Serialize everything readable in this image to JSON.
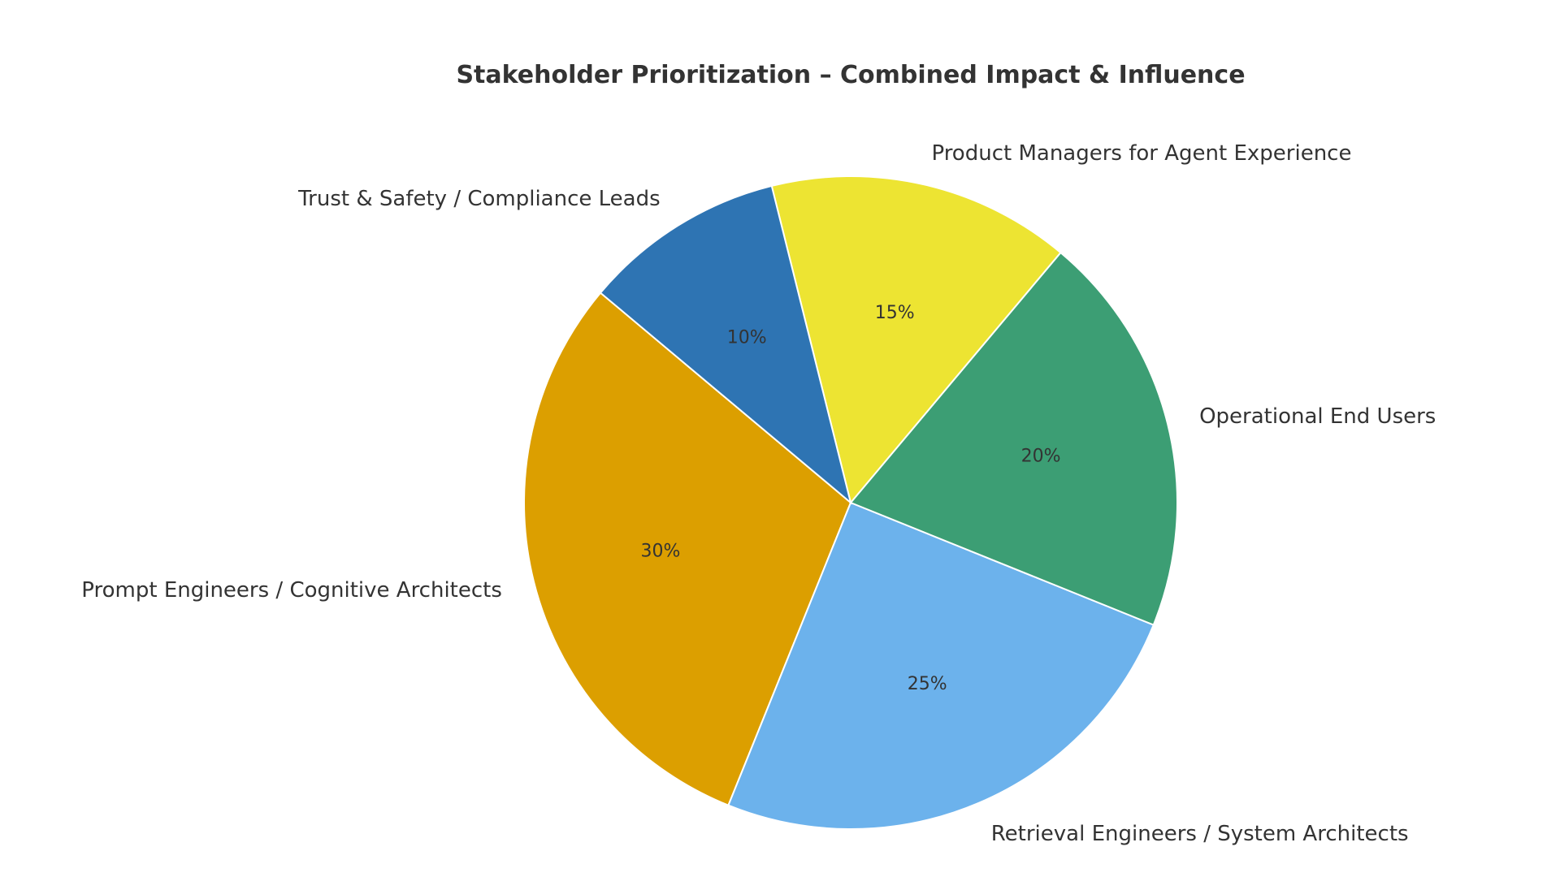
{
  "chart_data": {
    "type": "pie",
    "title": "Stakeholder Prioritization – Combined Impact & Influence",
    "start_angle_deg": 140,
    "direction": "counterclockwise",
    "slices": [
      {
        "label": "Prompt Engineers / Cognitive Architects",
        "value": 30,
        "pct_label": "30%",
        "color": "#DC9F00"
      },
      {
        "label": "Retrieval Engineers / System Architects",
        "value": 25,
        "pct_label": "25%",
        "color": "#6CB2EC"
      },
      {
        "label": "Operational End Users",
        "value": 20,
        "pct_label": "20%",
        "color": "#3C9E74"
      },
      {
        "label": "Product Managers for Agent Experience",
        "value": 15,
        "pct_label": "15%",
        "color": "#EDE432"
      },
      {
        "label": "Trust & Safety / Compliance Leads",
        "value": 10,
        "pct_label": "10%",
        "color": "#2E74B3"
      }
    ]
  }
}
